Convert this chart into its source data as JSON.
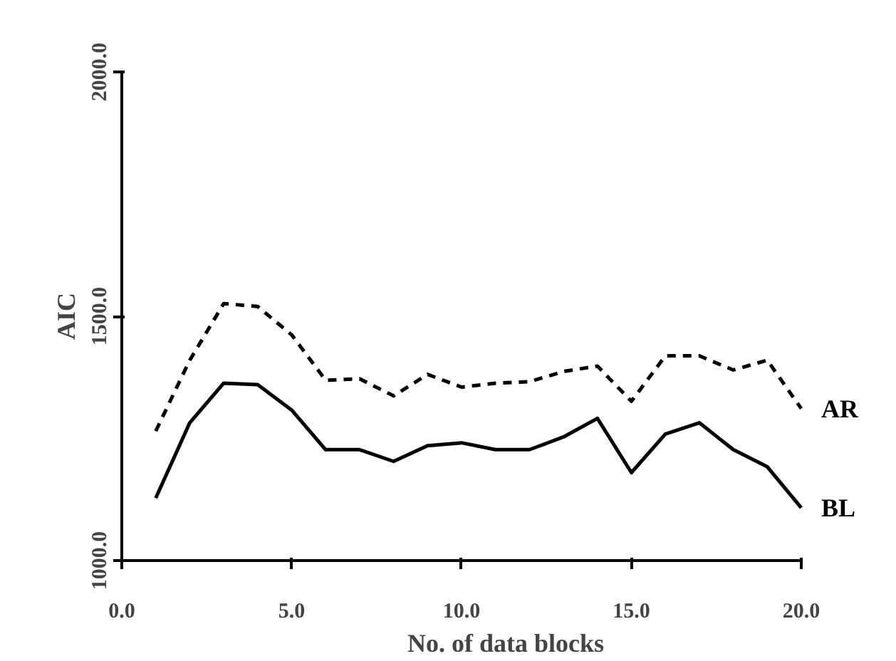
{
  "chart_data": {
    "type": "line",
    "xlabel": "No. of data blocks",
    "ylabel": "AIC",
    "x": [
      1,
      2,
      3,
      4,
      5,
      6,
      7,
      8,
      9,
      10,
      11,
      12,
      13,
      14,
      15,
      16,
      17,
      18,
      19,
      20
    ],
    "xlim": [
      0,
      20
    ],
    "ylim": [
      1000,
      2000
    ],
    "xticks": [
      {
        "value": 0,
        "label": "0.0"
      },
      {
        "value": 5,
        "label": "5.0"
      },
      {
        "value": 10,
        "label": "10.0"
      },
      {
        "value": 15,
        "label": "15.0"
      },
      {
        "value": 20,
        "label": "20.0"
      }
    ],
    "yticks": [
      {
        "value": 1000,
        "label": "1000.0"
      },
      {
        "value": 1500,
        "label": "1500.0"
      },
      {
        "value": 2000,
        "label": "2000.0"
      }
    ],
    "grid": false,
    "legend": false,
    "series": [
      {
        "name": "AR",
        "color": "#000000",
        "line_style": "dashed",
        "values": [
          1265,
          1410,
          1526,
          1520,
          1462,
          1369,
          1372,
          1337,
          1381,
          1355,
          1363,
          1366,
          1387,
          1398,
          1326,
          1419,
          1419,
          1390,
          1410,
          1311
        ]
      },
      {
        "name": "BL",
        "color": "#000000",
        "line_style": "solid",
        "values": [
          1128,
          1282,
          1363,
          1360,
          1308,
          1227,
          1227,
          1203,
          1235,
          1241,
          1227,
          1227,
          1253,
          1291,
          1180,
          1259,
          1282,
          1227,
          1192,
          1108
        ]
      }
    ]
  }
}
